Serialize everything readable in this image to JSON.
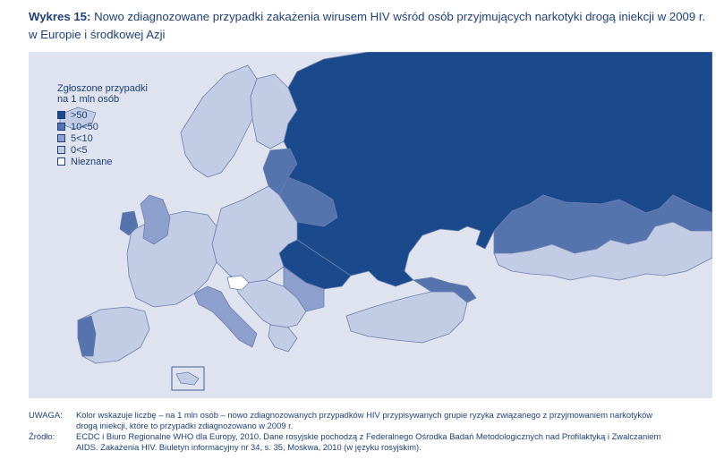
{
  "title": {
    "prefix": "Wykres 15:",
    "line1": "Nowo zdiagnozowane przypadki zakażenia wirusem HIV wśród osób przyjmujących narkotyki drogą iniekcji w 2009 r.",
    "line2": "w Europie i środkowej Azji"
  },
  "legend": {
    "title_line1": "Zgłoszone przypadki",
    "title_line2": "na 1 mln osób",
    "items": [
      {
        "label": ">50",
        "color": "#1a4a8c"
      },
      {
        "label": "10<50",
        "color": "#5573ad"
      },
      {
        "label": "5<10",
        "color": "#8d9fcc"
      },
      {
        "label": "0<5",
        "color": "#c3cce5"
      },
      {
        "label": "Nieznane",
        "color": "#ffffff"
      }
    ]
  },
  "map": {
    "sea_color": "#dfe3ef",
    "border_color": "#6c7fae"
  },
  "notes": {
    "uwaga_label": "UWAGA:",
    "uwaga_line1": "Kolor wskazuje liczbę – na 1 mln osób – nowo zdiagnozowanych przypadków HIV przypisywanych grupie ryzyka związanego z przyjmowaniem narkotyków",
    "uwaga_line2": "drogą iniekcji, które to przypadki zdiagnozowano w 2009 r.",
    "zrodlo_label": "Źródło:",
    "zrodlo_line1": "ECDC i Biuro Regionalne WHO dla Europy, 2010. Dane rosyjskie pochodzą z Federalnego Ośrodka Badań Metodologicznych nad Profilaktyką i Zwalczaniem",
    "zrodlo_line2": "AIDS. Zakażenia HIV. Biuletyn informacyjny nr 34, s. 35, Moskwa, 2010 (w języku rosyjskim)."
  }
}
